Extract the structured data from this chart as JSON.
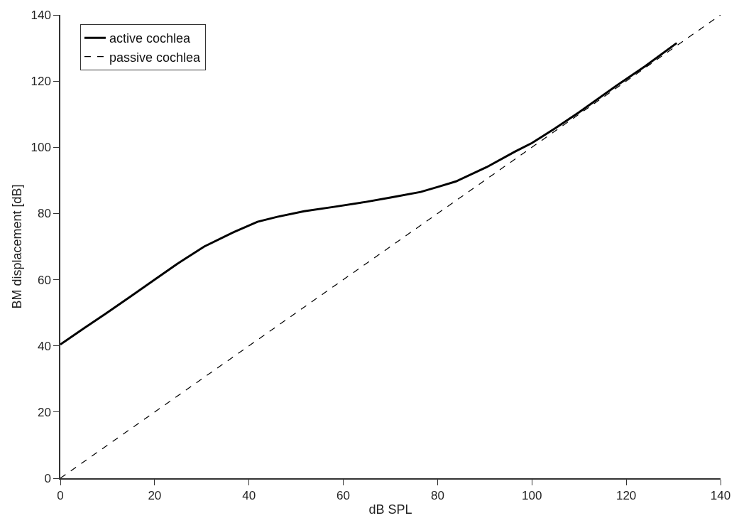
{
  "chart_data": {
    "type": "line",
    "xlabel": "dB SPL",
    "ylabel": "BM displacement [dB]",
    "xlim": [
      0,
      140
    ],
    "xticks": [
      0,
      20,
      40,
      60,
      80,
      100,
      120,
      140
    ],
    "ylim": [
      0,
      140
    ],
    "yticks": [
      0,
      20,
      40,
      60,
      80,
      100,
      120,
      140
    ],
    "legend": "top left",
    "marker": "none",
    "series": [
      {
        "name": "active cochlea",
        "color": "#000000",
        "line_style": "solid",
        "x": [
          0,
          5,
          9.6,
          15,
          20,
          24.7,
          30.5,
          36.7,
          41.8,
          46,
          51.7,
          58,
          64.8,
          70,
          76.4,
          80,
          83.9,
          90.4,
          96.4,
          100,
          105,
          110,
          117.9,
          124,
          130.7
        ],
        "values": [
          40.4,
          45.3,
          49.7,
          55,
          60,
          64.7,
          70,
          74.3,
          77.5,
          79,
          80.7,
          82,
          83.5,
          84.8,
          86.5,
          88,
          89.7,
          94,
          98.7,
          101.3,
          105.8,
          110.6,
          118.6,
          124.5,
          131.5
        ]
      },
      {
        "name": "passive cochlea",
        "color": "#000000",
        "line_style": "dashed",
        "x": [
          0,
          140
        ],
        "values": [
          0,
          140
        ]
      }
    ]
  }
}
